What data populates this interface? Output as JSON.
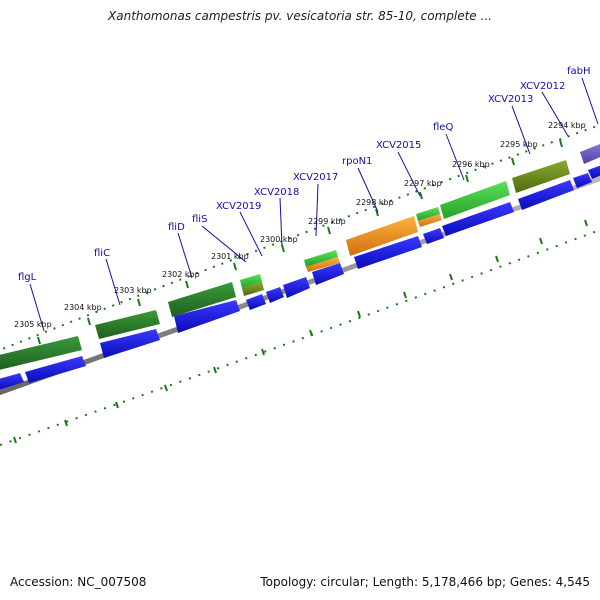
{
  "title": "Xanthomonas campestris pv. vesicatoria str. 85-10, complete ...",
  "footer": {
    "accession": "Accession: NC_007508",
    "summary": "Topology: circular; Length: 5,178,466 bp; Genes: 4,545"
  },
  "tick_labels": [
    "2305 kbp",
    "2304 kbp",
    "2303 kbp",
    "2302 kbp",
    "2301 kbp",
    "2300 kbp",
    "2299 kbp",
    "2298 kbp",
    "2297 kbp",
    "2296 kbp",
    "2295 kbp",
    "2294 kbp"
  ],
  "gene_labels": [
    "flgL",
    "fliC",
    "fliD",
    "fliS",
    "XCV2019",
    "XCV2018",
    "XCV2017",
    "rpoN1",
    "XCV2015",
    "fleQ",
    "XCV2013",
    "XCV2012",
    "fabH"
  ],
  "colors": {
    "gene_blue": "#1414e6",
    "green_dark": "#2a7d2a",
    "green_light": "#3cc63c",
    "orange": "#f09020",
    "olive": "#6a8a1e",
    "purple": "#7060c8",
    "label_blue": "#1010a8",
    "tick_green": "#1a7a1a"
  }
}
